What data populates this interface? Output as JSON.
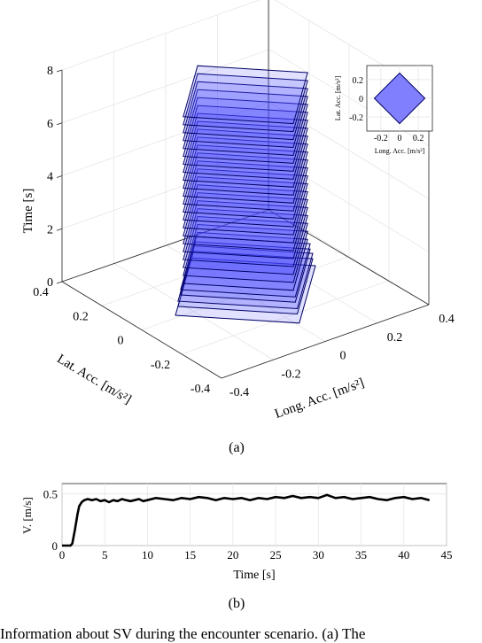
{
  "caption": "Information about SV during the encounter scenario. (a) The",
  "panel_a": {
    "label": "(a)",
    "chart_data": {
      "type": "3d-stacked-polygons",
      "title": "",
      "zlabel": "Time [s]",
      "xlabel": "Long. Acc. [m/s²]",
      "ylabel": "Lat. Acc. [m/s²]",
      "z_ticks": [
        "0",
        "2",
        "4",
        "6",
        "8"
      ],
      "x_ticks": [
        "-0.4",
        "-0.2",
        "0",
        "0.2",
        "0.4"
      ],
      "y_ticks": [
        "-0.4",
        "-0.2",
        "0",
        "0.2",
        "0.4"
      ],
      "zlim": [
        0,
        8
      ],
      "xlim": [
        -0.4,
        0.4
      ],
      "ylim": [
        -0.4,
        0.4
      ],
      "fill_color": "#4444ff",
      "edge_color": "#000066",
      "layer_times": [
        0.1,
        0.4,
        0.6,
        0.8,
        1.0,
        1.2,
        1.5,
        1.8,
        2.1,
        2.4,
        2.7,
        3.0,
        3.3,
        3.6,
        3.9,
        4.2,
        4.5,
        4.8,
        5.1,
        5.4,
        5.7,
        6.0,
        6.3,
        6.6,
        6.9,
        7.2,
        7.5
      ],
      "layer_half_width": [
        0.27,
        0.26,
        0.26,
        0.25,
        0.25,
        0.24,
        0.24,
        0.24,
        0.24,
        0.24,
        0.24,
        0.24,
        0.24,
        0.24,
        0.24,
        0.24,
        0.24,
        0.24,
        0.24,
        0.24,
        0.24,
        0.24,
        0.24,
        0.24,
        0.24,
        0.24,
        0.24
      ],
      "grid": true
    },
    "inset": {
      "chart_data": {
        "type": "polygon",
        "xlabel": "Long. Acc. [m/s²]",
        "ylabel": "Lat. Acc. [m/s²]",
        "x_ticks": [
          "-0.2",
          "0",
          "0.2"
        ],
        "y_ticks": [
          "-0.2",
          "0",
          "0.2"
        ],
        "xlim": [
          -0.35,
          0.35
        ],
        "ylim": [
          -0.35,
          0.35
        ],
        "polygon": [
          [
            0.27,
            0
          ],
          [
            0,
            0.27
          ],
          [
            -0.27,
            0
          ],
          [
            0,
            -0.27
          ]
        ],
        "fill_color": "#8080ff",
        "grid": true
      }
    }
  },
  "panel_b": {
    "label": "(b)",
    "chart_data": {
      "type": "line",
      "xlabel": "Time [s]",
      "ylabel": "V. [m/s]",
      "xlim": [
        0,
        45
      ],
      "ylim": [
        0,
        0.6
      ],
      "x_ticks": [
        "0",
        "5",
        "10",
        "15",
        "20",
        "25",
        "30",
        "35",
        "40",
        "45"
      ],
      "y_ticks": [
        "0",
        "0.5"
      ],
      "grid": true,
      "series": [
        {
          "color": "#000000",
          "x": [
            0,
            0.5,
            1.0,
            1.2,
            1.5,
            1.8,
            2.0,
            2.3,
            2.6,
            3.0,
            3.5,
            4.0,
            4.5,
            5.0,
            5.5,
            6.0,
            6.5,
            7.0,
            7.5,
            8.0,
            8.5,
            9.0,
            9.5,
            10,
            11,
            12,
            13,
            14,
            15,
            16,
            17,
            18,
            19,
            20,
            21,
            22,
            23,
            24,
            25,
            26,
            27,
            28,
            29,
            30,
            31,
            32,
            33,
            34,
            35,
            36,
            37,
            38,
            39,
            40,
            41,
            42,
            43
          ],
          "values": [
            0,
            0,
            0,
            0.02,
            0.15,
            0.3,
            0.38,
            0.42,
            0.44,
            0.45,
            0.44,
            0.45,
            0.43,
            0.44,
            0.42,
            0.44,
            0.43,
            0.45,
            0.44,
            0.43,
            0.44,
            0.45,
            0.43,
            0.44,
            0.46,
            0.45,
            0.44,
            0.46,
            0.45,
            0.47,
            0.46,
            0.44,
            0.46,
            0.45,
            0.46,
            0.44,
            0.46,
            0.45,
            0.47,
            0.46,
            0.48,
            0.46,
            0.47,
            0.46,
            0.49,
            0.46,
            0.47,
            0.45,
            0.46,
            0.47,
            0.45,
            0.44,
            0.46,
            0.47,
            0.45,
            0.46,
            0.44
          ]
        }
      ]
    }
  }
}
